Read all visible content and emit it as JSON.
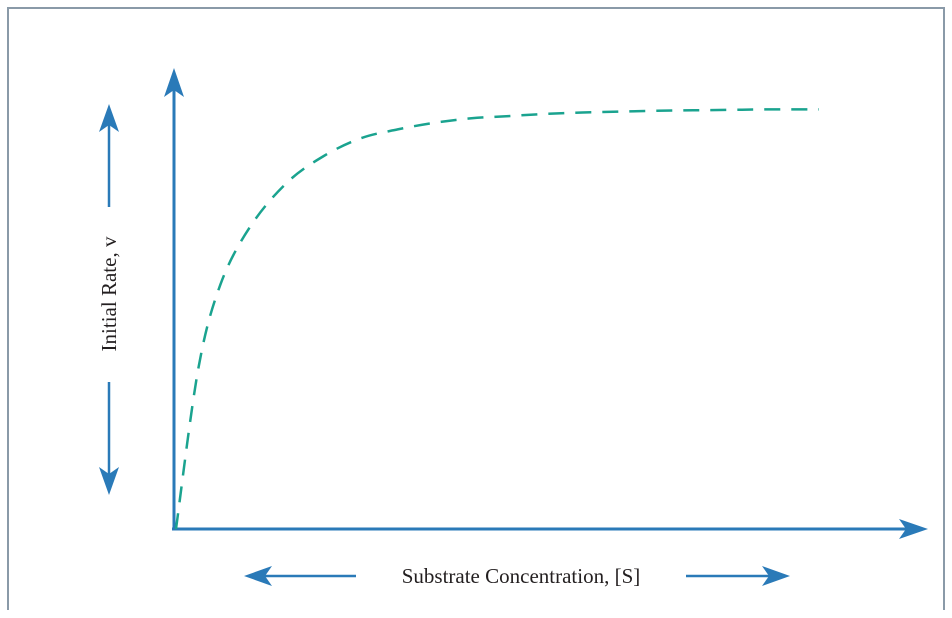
{
  "colors": {
    "axis": "#2a7ab8",
    "curve": "#1aa38f",
    "frame": "#8a9aa8",
    "text": "#231f20"
  },
  "chart_data": {
    "type": "line",
    "title": "",
    "xlabel": "Substrate Concentration, [S]",
    "ylabel": "Initial Rate, v",
    "xlim": [
      0,
      10
    ],
    "ylim": [
      0,
      10
    ],
    "grid": false,
    "legend": "none",
    "series": [
      {
        "style": "dashed",
        "shape": "saturating hyperbola (Michaelis-Menten)",
        "x": [
          0,
          0.3,
          0.6,
          1.0,
          1.5,
          2.0,
          2.5,
          3.0,
          3.5,
          4.0,
          4.5,
          5.0,
          5.5,
          6.0,
          6.5,
          7.0,
          7.5,
          8.0,
          8.7
        ],
        "y": [
          0,
          3.6,
          5.5,
          6.8,
          7.8,
          8.4,
          8.8,
          9.0,
          9.15,
          9.25,
          9.3,
          9.35,
          9.38,
          9.4,
          9.42,
          9.43,
          9.44,
          9.45,
          9.45
        ]
      }
    ]
  }
}
